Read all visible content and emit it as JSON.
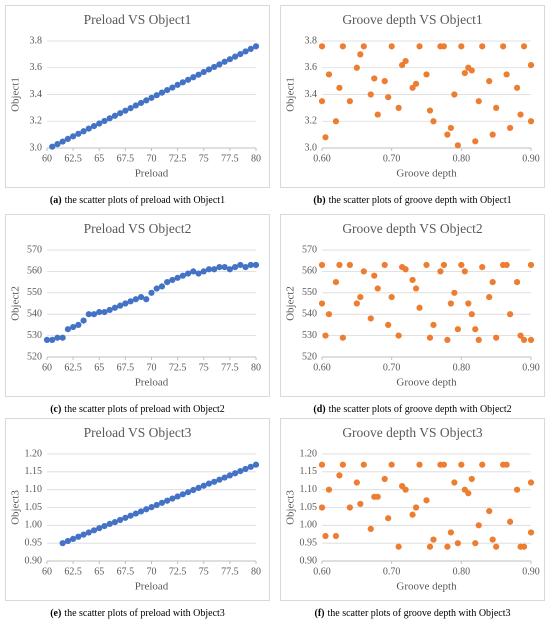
{
  "chart_data": [
    {
      "type": "scatter",
      "title": "Preload VS Object1",
      "caption_label": "(a)",
      "caption": "the scatter plots of preload with Object1",
      "x_label": "Preload",
      "y_label": "Object1",
      "color": "#4472c4",
      "grid": true,
      "xlim": [
        60,
        80
      ],
      "xticks": [
        60,
        62.5,
        65,
        67.5,
        70,
        72.5,
        75,
        77.5,
        80
      ],
      "ylim": [
        3,
        3.8
      ],
      "yticks": [
        {
          "value": 3,
          "label": "3.0"
        },
        3.2,
        3.4,
        3.6,
        3.8
      ],
      "x": [
        60.5,
        61,
        61.5,
        62,
        62.5,
        63,
        63.5,
        64,
        64.5,
        65,
        65.5,
        66,
        66.5,
        67,
        67.5,
        68,
        68.5,
        69,
        69.5,
        70,
        70.5,
        71,
        71.5,
        72,
        72.5,
        73,
        73.5,
        74,
        74.5,
        75,
        75.5,
        76,
        76.5,
        77,
        77.5,
        78,
        78.5,
        79,
        79.5,
        80
      ],
      "values": [
        3.01,
        3.029,
        3.048,
        3.068,
        3.087,
        3.106,
        3.125,
        3.145,
        3.164,
        3.183,
        3.202,
        3.222,
        3.241,
        3.26,
        3.279,
        3.298,
        3.318,
        3.337,
        3.356,
        3.375,
        3.395,
        3.414,
        3.433,
        3.452,
        3.472,
        3.491,
        3.51,
        3.529,
        3.548,
        3.568,
        3.587,
        3.606,
        3.625,
        3.645,
        3.664,
        3.683,
        3.702,
        3.722,
        3.741,
        3.76
      ]
    },
    {
      "type": "scatter",
      "title": "Groove depth VS Object1",
      "caption_label": "(b)",
      "caption": "the scatter plots of groove depth with Object1",
      "x_label": "Groove depth",
      "y_label": "Object1",
      "color": "#ed7d31",
      "grid": true,
      "xlim": [
        0.6,
        0.9
      ],
      "xticks": [
        {
          "value": 0.6,
          "label": "0.60"
        },
        {
          "value": 0.7,
          "label": "0.70"
        },
        {
          "value": 0.8,
          "label": "0.80"
        },
        {
          "value": 0.9,
          "label": "0.90"
        }
      ],
      "ylim": [
        3,
        3.8
      ],
      "yticks": [
        {
          "value": 3,
          "label": "3.0"
        },
        3.2,
        3.4,
        3.6,
        3.8
      ],
      "x": [
        0.6,
        0.61,
        0.62,
        0.63,
        0.64,
        0.65,
        0.66,
        0.67,
        0.68,
        0.69,
        0.7,
        0.71,
        0.72,
        0.73,
        0.74,
        0.75,
        0.76,
        0.77,
        0.78,
        0.79,
        0.8,
        0.81,
        0.82,
        0.83,
        0.84,
        0.85,
        0.86,
        0.87,
        0.88,
        0.89,
        0.9,
        0.605,
        0.625,
        0.655,
        0.675,
        0.695,
        0.715,
        0.735,
        0.755,
        0.775,
        0.785,
        0.795,
        0.805,
        0.815,
        0.825,
        0.845,
        0.865,
        0.885,
        0.6,
        0.9
      ],
      "values": [
        3.76,
        3.55,
        3.2,
        3.76,
        3.35,
        3.6,
        3.76,
        3.4,
        3.25,
        3.5,
        3.76,
        3.3,
        3.65,
        3.45,
        3.76,
        3.55,
        3.2,
        3.76,
        3.1,
        3.4,
        3.76,
        3.6,
        3.05,
        3.76,
        3.5,
        3.3,
        3.76,
        3.15,
        3.45,
        3.76,
        3.62,
        3.08,
        3.45,
        3.7,
        3.52,
        3.38,
        3.62,
        3.48,
        3.28,
        3.76,
        3.15,
        3.02,
        3.56,
        3.58,
        3.35,
        3.1,
        3.55,
        3.25,
        3.35,
        3.2
      ]
    },
    {
      "type": "scatter",
      "title": "Preload VS Object2",
      "caption_label": "(c)",
      "caption": "the scatter plots of preload with Object2",
      "x_label": "Preload",
      "y_label": "Object2",
      "color": "#4472c4",
      "grid": true,
      "xlim": [
        60,
        80
      ],
      "xticks": [
        60,
        62.5,
        65,
        67.5,
        70,
        72.5,
        75,
        77.5,
        80
      ],
      "ylim": [
        520,
        570
      ],
      "yticks": [
        520,
        530,
        540,
        550,
        560,
        570
      ],
      "x": [
        60,
        60.5,
        61,
        61.5,
        62,
        62.5,
        63,
        63.5,
        64,
        64.5,
        65,
        65.5,
        66,
        66.5,
        67,
        67.5,
        68,
        68.5,
        69,
        69.5,
        70,
        70.5,
        71,
        71.5,
        72,
        72.5,
        73,
        73.5,
        74,
        74.5,
        75,
        75.5,
        76,
        76.5,
        77,
        77.5,
        78,
        78.5,
        79,
        79.5,
        80
      ],
      "values": [
        528,
        528,
        529,
        529,
        533,
        534,
        535,
        537,
        540,
        540,
        541,
        541,
        542,
        543,
        544,
        545,
        546,
        547,
        548,
        547,
        550,
        552,
        553,
        555,
        556,
        557,
        558,
        559,
        560,
        559,
        560,
        561,
        561,
        562,
        562,
        561,
        562,
        563,
        562,
        563,
        563
      ]
    },
    {
      "type": "scatter",
      "title": "Groove depth VS Object2",
      "caption_label": "(d)",
      "caption": "the scatter plots of groove depth with Object2",
      "x_label": "Groove depth",
      "y_label": "Object2",
      "color": "#ed7d31",
      "grid": true,
      "xlim": [
        0.6,
        0.9
      ],
      "xticks": [
        {
          "value": 0.6,
          "label": "0.60"
        },
        {
          "value": 0.7,
          "label": "0.70"
        },
        {
          "value": 0.8,
          "label": "0.80"
        },
        {
          "value": 0.9,
          "label": "0.90"
        }
      ],
      "ylim": [
        520,
        570
      ],
      "yticks": [
        520,
        530,
        540,
        550,
        560,
        570
      ],
      "x": [
        0.6,
        0.61,
        0.62,
        0.63,
        0.64,
        0.65,
        0.66,
        0.67,
        0.68,
        0.69,
        0.7,
        0.71,
        0.72,
        0.73,
        0.74,
        0.75,
        0.76,
        0.77,
        0.78,
        0.79,
        0.8,
        0.81,
        0.82,
        0.83,
        0.84,
        0.85,
        0.86,
        0.87,
        0.88,
        0.89,
        0.9,
        0.605,
        0.625,
        0.655,
        0.675,
        0.695,
        0.715,
        0.735,
        0.755,
        0.775,
        0.785,
        0.795,
        0.805,
        0.815,
        0.825,
        0.845,
        0.865,
        0.885,
        0.6,
        0.9
      ],
      "values": [
        563,
        540,
        555,
        529,
        563,
        545,
        560,
        538,
        552,
        563,
        548,
        530,
        561,
        556,
        543,
        563,
        535,
        560,
        528,
        550,
        563,
        545,
        533,
        562,
        548,
        529,
        563,
        540,
        555,
        528,
        563,
        530,
        563,
        548,
        558,
        535,
        562,
        552,
        529,
        563,
        545,
        533,
        560,
        540,
        528,
        555,
        563,
        530,
        545,
        528
      ]
    },
    {
      "type": "scatter",
      "title": "Preload VS Object3",
      "caption_label": "(e)",
      "caption": "the scatter plots of preload with Object3",
      "x_label": "Preload",
      "y_label": "Object3",
      "color": "#4472c4",
      "grid": true,
      "xlim": [
        60,
        80
      ],
      "xticks": [
        60,
        62.5,
        65,
        67.5,
        70,
        72.5,
        75,
        77.5,
        80
      ],
      "ylim": [
        0.9,
        1.2
      ],
      "yticks": [
        {
          "value": 0.9,
          "label": "0.90"
        },
        0.95,
        {
          "value": 1,
          "label": "1.00"
        },
        1.05,
        {
          "value": 1.1,
          "label": "1.10"
        },
        1.15,
        {
          "value": 1.2,
          "label": "1.20"
        }
      ],
      "x": [
        61.5,
        62,
        62.5,
        63,
        63.5,
        64,
        64.5,
        65,
        65.5,
        66,
        66.5,
        67,
        67.5,
        68,
        68.5,
        69,
        69.5,
        70,
        70.5,
        71,
        71.5,
        72,
        72.5,
        73,
        73.5,
        74,
        74.5,
        75,
        75.5,
        76,
        76.5,
        77,
        77.5,
        78,
        78.5,
        79,
        79.5,
        80
      ],
      "values": [
        0.95,
        0.956,
        0.962,
        0.968,
        0.974,
        0.98,
        0.986,
        0.992,
        0.998,
        1.004,
        1.009,
        1.015,
        1.021,
        1.027,
        1.033,
        1.039,
        1.045,
        1.051,
        1.057,
        1.063,
        1.069,
        1.075,
        1.081,
        1.087,
        1.093,
        1.099,
        1.105,
        1.111,
        1.117,
        1.122,
        1.128,
        1.134,
        1.14,
        1.146,
        1.152,
        1.158,
        1.164,
        1.17
      ]
    },
    {
      "type": "scatter",
      "title": "Groove depth VS Object3",
      "caption_label": "(f)",
      "caption": "the scatter plots of groove depth with Object3",
      "x_label": "Groove depth",
      "y_label": "Object3",
      "color": "#ed7d31",
      "grid": true,
      "xlim": [
        0.6,
        0.9
      ],
      "xticks": [
        {
          "value": 0.6,
          "label": "0.60"
        },
        {
          "value": 0.7,
          "label": "0.70"
        },
        {
          "value": 0.8,
          "label": "0.80"
        },
        {
          "value": 0.9,
          "label": "0.90"
        }
      ],
      "ylim": [
        0.9,
        1.2
      ],
      "yticks": [
        {
          "value": 0.9,
          "label": "0.90"
        },
        0.95,
        {
          "value": 1,
          "label": "1.00"
        },
        1.05,
        {
          "value": 1.1,
          "label": "1.10"
        },
        1.15,
        {
          "value": 1.2,
          "label": "1.20"
        }
      ],
      "x": [
        0.6,
        0.61,
        0.62,
        0.63,
        0.64,
        0.65,
        0.66,
        0.67,
        0.68,
        0.69,
        0.7,
        0.71,
        0.72,
        0.73,
        0.74,
        0.75,
        0.76,
        0.77,
        0.78,
        0.79,
        0.8,
        0.81,
        0.82,
        0.83,
        0.84,
        0.85,
        0.86,
        0.87,
        0.88,
        0.89,
        0.9,
        0.605,
        0.625,
        0.655,
        0.675,
        0.695,
        0.715,
        0.735,
        0.755,
        0.775,
        0.785,
        0.795,
        0.805,
        0.815,
        0.825,
        0.845,
        0.865,
        0.885,
        0.6,
        0.9
      ],
      "values": [
        1.17,
        1.1,
        0.97,
        1.17,
        1.05,
        1.12,
        1.17,
        0.99,
        1.08,
        1.13,
        1.17,
        0.94,
        1.1,
        1.03,
        1.17,
        1.07,
        0.96,
        1.17,
        0.94,
        1.12,
        1.17,
        1.09,
        0.95,
        1.17,
        1.04,
        0.94,
        1.17,
        1.01,
        1.1,
        0.94,
        1.12,
        0.97,
        1.14,
        1.06,
        1.08,
        1.02,
        1.11,
        1.05,
        0.94,
        1.17,
        0.98,
        0.95,
        1.1,
        1.13,
        1.0,
        0.96,
        1.17,
        0.94,
        1.05,
        0.98
      ]
    }
  ]
}
